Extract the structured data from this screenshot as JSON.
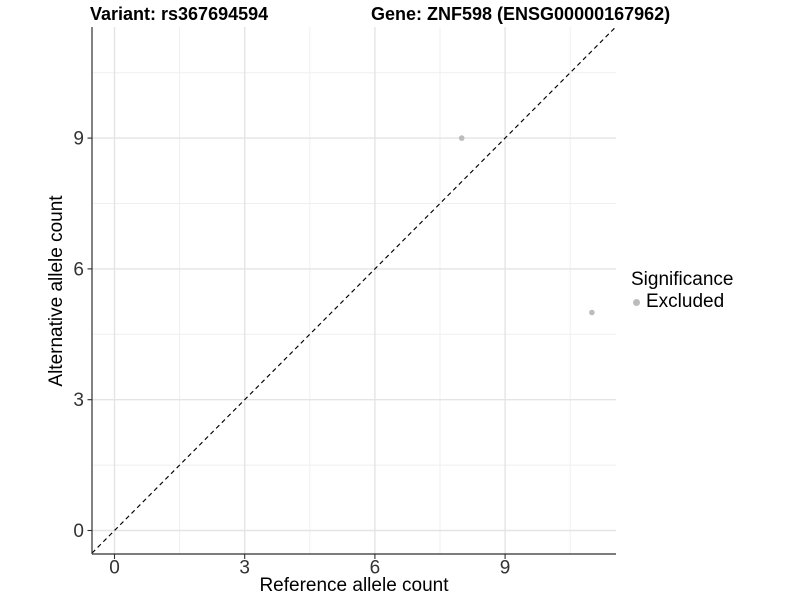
{
  "titles": {
    "variant": "Variant: rs367694594",
    "gene": "Gene: ZNF598 (ENSG00000167962)"
  },
  "chart_data": {
    "type": "scatter",
    "xlabel": "Reference allele count",
    "ylabel": "Alternative allele count",
    "xlim": [
      -0.55,
      11.55
    ],
    "ylim": [
      -0.55,
      11.55
    ],
    "x_ticks": [
      0,
      3,
      6,
      9
    ],
    "y_ticks": [
      0,
      3,
      6,
      9
    ],
    "x_minor_ticks": [
      1.5,
      4.5,
      7.5,
      10.5
    ],
    "y_minor_ticks": [
      1.5,
      4.5,
      7.5,
      10.5
    ],
    "grid": true,
    "series": [
      {
        "name": "Excluded",
        "points": [
          [
            8,
            9
          ],
          [
            11,
            5
          ]
        ],
        "color": "#bcbcbc",
        "marker": "circle"
      }
    ],
    "identity_line": {
      "slope": 1,
      "intercept": 0,
      "linetype": "dashed",
      "color": "#000000"
    },
    "legend": {
      "title": "Significance",
      "position": "right",
      "items": [
        {
          "label": "Excluded",
          "color": "#bcbcbc",
          "marker": "circle"
        }
      ]
    }
  },
  "colors": {
    "background": "#ffffff",
    "grid_major": "#e4e4e4",
    "grid_minor": "#efefef",
    "axis_line": "#2f2f2f",
    "tick_mark": "#2f2f2f",
    "tick_label": "#333333",
    "text": "#000000",
    "point": "#bcbcbc",
    "identity_line": "#000000"
  }
}
